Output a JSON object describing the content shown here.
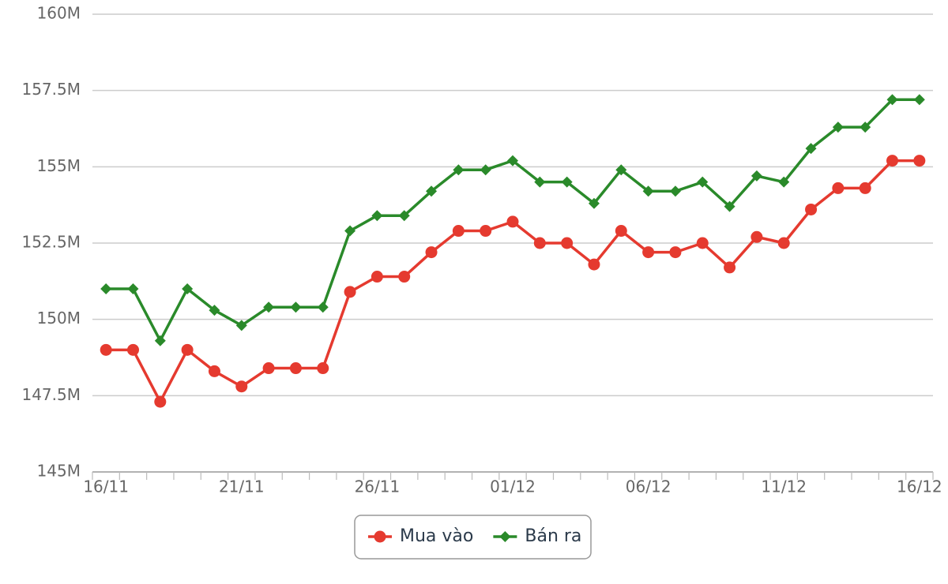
{
  "chart_data": {
    "type": "line",
    "categories": [
      "16/11",
      null,
      null,
      null,
      null,
      "21/11",
      null,
      null,
      null,
      null,
      "26/11",
      null,
      null,
      null,
      null,
      "01/12",
      null,
      null,
      null,
      null,
      "06/12",
      null,
      null,
      null,
      null,
      "11/12",
      null,
      null,
      null,
      null,
      "16/12"
    ],
    "series": [
      {
        "name": "Mua vào",
        "color": "#e53a2f",
        "marker": "circle",
        "values": [
          149000000,
          149000000,
          147300000,
          149000000,
          148300000,
          147800000,
          148400000,
          148400000,
          148400000,
          150900000,
          151400000,
          151400000,
          152200000,
          152900000,
          152900000,
          153200000,
          152500000,
          152500000,
          151800000,
          152900000,
          152200000,
          152200000,
          152500000,
          151700000,
          152700000,
          152500000,
          153600000,
          154300000,
          154300000,
          155200000,
          155200000
        ]
      },
      {
        "name": "Bán ra",
        "color": "#2a8a2a",
        "marker": "diamond",
        "values": [
          151000000,
          151000000,
          149300000,
          151000000,
          150300000,
          149800000,
          150400000,
          150400000,
          150400000,
          152900000,
          153400000,
          153400000,
          154200000,
          154900000,
          154900000,
          155200000,
          154500000,
          154500000,
          153800000,
          154900000,
          154200000,
          154200000,
          154500000,
          153700000,
          154700000,
          154500000,
          155600000,
          156300000,
          156300000,
          157200000,
          157200000
        ]
      }
    ],
    "ylim": [
      145000000,
      160000000
    ],
    "yticks": [
      {
        "value": 145000000,
        "label": "145M"
      },
      {
        "value": 147500000,
        "label": "147.5M"
      },
      {
        "value": 150000000,
        "label": "150M"
      },
      {
        "value": 152500000,
        "label": "152.5M"
      },
      {
        "value": 155000000,
        "label": "155M"
      },
      {
        "value": 157500000,
        "label": "157.5M"
      },
      {
        "value": 160000000,
        "label": "160M"
      }
    ],
    "grid": true,
    "legend": "bottom"
  }
}
